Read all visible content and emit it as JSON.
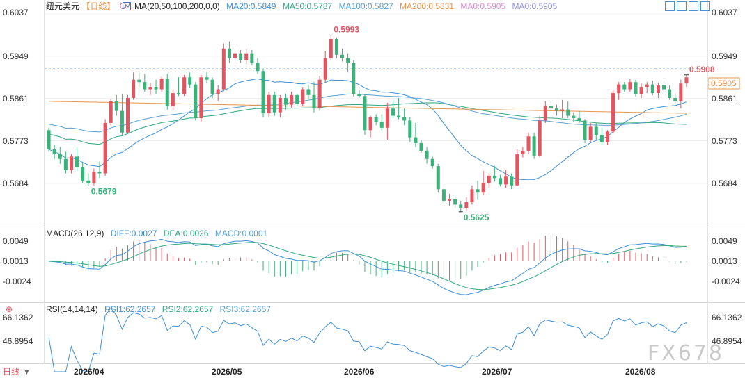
{
  "header": {
    "symbol": "纽元美元",
    "period": "【日线】",
    "ma_label": "MA(20,50,100,200,0,0)",
    "ma_items": [
      {
        "text": "MA20:0.5849",
        "color": "#3d8fd6"
      },
      {
        "text": "MA50:0.5787",
        "color": "#2fa87e"
      },
      {
        "text": "MA100:0.5827",
        "color": "#5aa0d0"
      },
      {
        "text": "MA200:0.5831",
        "color": "#e8954a"
      },
      {
        "text": "MA0:0.5905",
        "color": "#d88ad0"
      },
      {
        "text": "MA0:0.5905",
        "color": "#8f8fe0"
      }
    ]
  },
  "price_axis": {
    "ticks": [
      "0.6037",
      "0.5949",
      "0.5861",
      "0.5773",
      "0.5684"
    ],
    "current": "0.5905"
  },
  "annotations": {
    "high1": "0.5993",
    "low1": "0.5679",
    "low2": "0.5625",
    "high2": "0.5908"
  },
  "macd": {
    "label": "MACD(26,12,9)",
    "diff": "DIFF:0.0027",
    "dea": "DEA:0.0026",
    "macd": "MACD:0.0001",
    "ticks": [
      "0.0049",
      "0.0013",
      "-0.0024"
    ]
  },
  "rsi": {
    "label": "RSI(14,14,14)",
    "rsi1": "RSI1:62.2657",
    "rsi2": "RSI2:62.2657",
    "rsi3": "RSI3:62.2657",
    "ticks": [
      "66.1362",
      "46.8954"
    ]
  },
  "x_axis": {
    "labels": [
      "2026/04",
      "2026/05",
      "2026/06",
      "2026/07",
      "2026/08"
    ]
  },
  "footer": {
    "period_button": "日线"
  },
  "watermark": "FX678",
  "chart_data": {
    "type": "candlestick",
    "title": "纽元美元",
    "ylim": [
      0.562,
      0.6037
    ],
    "colors": {
      "up": "#e35561",
      "down": "#3ab27a"
    },
    "candles": [
      {
        "o": 0.5795,
        "h": 0.58,
        "l": 0.575,
        "c": 0.5755
      },
      {
        "o": 0.5755,
        "h": 0.5765,
        "l": 0.5735,
        "c": 0.5745
      },
      {
        "o": 0.5745,
        "h": 0.576,
        "l": 0.5725,
        "c": 0.5735
      },
      {
        "o": 0.5735,
        "h": 0.575,
        "l": 0.5705,
        "c": 0.5712
      },
      {
        "o": 0.5712,
        "h": 0.5745,
        "l": 0.5705,
        "c": 0.574
      },
      {
        "o": 0.574,
        "h": 0.576,
        "l": 0.571,
        "c": 0.5718
      },
      {
        "o": 0.5718,
        "h": 0.5728,
        "l": 0.5684,
        "c": 0.569
      },
      {
        "o": 0.569,
        "h": 0.5705,
        "l": 0.5679,
        "c": 0.5684
      },
      {
        "o": 0.5684,
        "h": 0.5715,
        "l": 0.568,
        "c": 0.5708
      },
      {
        "o": 0.5708,
        "h": 0.573,
        "l": 0.5695,
        "c": 0.5705
      },
      {
        "o": 0.5705,
        "h": 0.5818,
        "l": 0.57,
        "c": 0.581
      },
      {
        "o": 0.581,
        "h": 0.586,
        "l": 0.5805,
        "c": 0.5855
      },
      {
        "o": 0.5855,
        "h": 0.5868,
        "l": 0.5825,
        "c": 0.5835
      },
      {
        "o": 0.5835,
        "h": 0.587,
        "l": 0.5785,
        "c": 0.579
      },
      {
        "o": 0.579,
        "h": 0.5868,
        "l": 0.5788,
        "c": 0.5862
      },
      {
        "o": 0.5862,
        "h": 0.5915,
        "l": 0.5858,
        "c": 0.59
      },
      {
        "o": 0.59,
        "h": 0.5915,
        "l": 0.5885,
        "c": 0.5895
      },
      {
        "o": 0.5895,
        "h": 0.5912,
        "l": 0.5875,
        "c": 0.588
      },
      {
        "o": 0.588,
        "h": 0.5893,
        "l": 0.5868,
        "c": 0.5885
      },
      {
        "o": 0.5885,
        "h": 0.59,
        "l": 0.587,
        "c": 0.588
      },
      {
        "o": 0.588,
        "h": 0.5906,
        "l": 0.5875,
        "c": 0.5902
      },
      {
        "o": 0.5902,
        "h": 0.5912,
        "l": 0.5838,
        "c": 0.5845
      },
      {
        "o": 0.5845,
        "h": 0.588,
        "l": 0.5838,
        "c": 0.5872
      },
      {
        "o": 0.5872,
        "h": 0.5905,
        "l": 0.5866,
        "c": 0.587
      },
      {
        "o": 0.587,
        "h": 0.591,
        "l": 0.5866,
        "c": 0.5905
      },
      {
        "o": 0.5905,
        "h": 0.5915,
        "l": 0.5883,
        "c": 0.589
      },
      {
        "o": 0.589,
        "h": 0.5895,
        "l": 0.5815,
        "c": 0.582
      },
      {
        "o": 0.582,
        "h": 0.591,
        "l": 0.5812,
        "c": 0.5905
      },
      {
        "o": 0.5905,
        "h": 0.5915,
        "l": 0.5892,
        "c": 0.59
      },
      {
        "o": 0.59,
        "h": 0.5905,
        "l": 0.5862,
        "c": 0.587
      },
      {
        "o": 0.587,
        "h": 0.5888,
        "l": 0.5856,
        "c": 0.588
      },
      {
        "o": 0.588,
        "h": 0.5975,
        "l": 0.5876,
        "c": 0.5965
      },
      {
        "o": 0.5965,
        "h": 0.598,
        "l": 0.5935,
        "c": 0.5945
      },
      {
        "o": 0.5945,
        "h": 0.5965,
        "l": 0.5928,
        "c": 0.5955
      },
      {
        "o": 0.5955,
        "h": 0.5962,
        "l": 0.5935,
        "c": 0.594
      },
      {
        "o": 0.594,
        "h": 0.5965,
        "l": 0.5932,
        "c": 0.5955
      },
      {
        "o": 0.5955,
        "h": 0.5962,
        "l": 0.593,
        "c": 0.5935
      },
      {
        "o": 0.5935,
        "h": 0.5945,
        "l": 0.5912,
        "c": 0.5918
      },
      {
        "o": 0.5918,
        "h": 0.5922,
        "l": 0.5822,
        "c": 0.583
      },
      {
        "o": 0.583,
        "h": 0.5875,
        "l": 0.5822,
        "c": 0.5868
      },
      {
        "o": 0.5868,
        "h": 0.5875,
        "l": 0.5825,
        "c": 0.5832
      },
      {
        "o": 0.5832,
        "h": 0.5868,
        "l": 0.5822,
        "c": 0.5862
      },
      {
        "o": 0.5862,
        "h": 0.587,
        "l": 0.5838,
        "c": 0.5848
      },
      {
        "o": 0.5848,
        "h": 0.5875,
        "l": 0.5842,
        "c": 0.5868
      },
      {
        "o": 0.5868,
        "h": 0.587,
        "l": 0.5845,
        "c": 0.585
      },
      {
        "o": 0.585,
        "h": 0.5885,
        "l": 0.5845,
        "c": 0.588
      },
      {
        "o": 0.588,
        "h": 0.589,
        "l": 0.586,
        "c": 0.5868
      },
      {
        "o": 0.5868,
        "h": 0.5895,
        "l": 0.5832,
        "c": 0.584
      },
      {
        "o": 0.584,
        "h": 0.5908,
        "l": 0.5835,
        "c": 0.59
      },
      {
        "o": 0.59,
        "h": 0.596,
        "l": 0.5894,
        "c": 0.5945
      },
      {
        "o": 0.5945,
        "h": 0.5993,
        "l": 0.594,
        "c": 0.5985
      },
      {
        "o": 0.5985,
        "h": 0.5988,
        "l": 0.5945,
        "c": 0.5952
      },
      {
        "o": 0.5952,
        "h": 0.5965,
        "l": 0.5938,
        "c": 0.5945
      },
      {
        "o": 0.5945,
        "h": 0.5955,
        "l": 0.5915,
        "c": 0.5935
      },
      {
        "o": 0.5935,
        "h": 0.594,
        "l": 0.5865,
        "c": 0.587
      },
      {
        "o": 0.587,
        "h": 0.5878,
        "l": 0.5862,
        "c": 0.5866
      },
      {
        "o": 0.5866,
        "h": 0.587,
        "l": 0.5785,
        "c": 0.5795
      },
      {
        "o": 0.5795,
        "h": 0.5825,
        "l": 0.578,
        "c": 0.5822
      },
      {
        "o": 0.5822,
        "h": 0.5828,
        "l": 0.5805,
        "c": 0.5812
      },
      {
        "o": 0.5812,
        "h": 0.5828,
        "l": 0.5795,
        "c": 0.58
      },
      {
        "o": 0.58,
        "h": 0.5852,
        "l": 0.5775,
        "c": 0.584
      },
      {
        "o": 0.584,
        "h": 0.5858,
        "l": 0.582,
        "c": 0.5825
      },
      {
        "o": 0.5825,
        "h": 0.5862,
        "l": 0.5818,
        "c": 0.5822
      },
      {
        "o": 0.5822,
        "h": 0.584,
        "l": 0.5805,
        "c": 0.5815
      },
      {
        "o": 0.5815,
        "h": 0.5822,
        "l": 0.577,
        "c": 0.578
      },
      {
        "o": 0.578,
        "h": 0.581,
        "l": 0.576,
        "c": 0.5768
      },
      {
        "o": 0.5768,
        "h": 0.5775,
        "l": 0.5748,
        "c": 0.5752
      },
      {
        "o": 0.5752,
        "h": 0.576,
        "l": 0.5725,
        "c": 0.5735
      },
      {
        "o": 0.5735,
        "h": 0.574,
        "l": 0.5715,
        "c": 0.572
      },
      {
        "o": 0.572,
        "h": 0.5725,
        "l": 0.5665,
        "c": 0.5672
      },
      {
        "o": 0.5672,
        "h": 0.5678,
        "l": 0.564,
        "c": 0.5648
      },
      {
        "o": 0.5648,
        "h": 0.5662,
        "l": 0.5638,
        "c": 0.5652
      },
      {
        "o": 0.5652,
        "h": 0.5658,
        "l": 0.5635,
        "c": 0.564
      },
      {
        "o": 0.564,
        "h": 0.5648,
        "l": 0.5625,
        "c": 0.5632
      },
      {
        "o": 0.5632,
        "h": 0.5655,
        "l": 0.5628,
        "c": 0.5645
      },
      {
        "o": 0.5645,
        "h": 0.568,
        "l": 0.564,
        "c": 0.5672
      },
      {
        "o": 0.5672,
        "h": 0.569,
        "l": 0.565,
        "c": 0.5665
      },
      {
        "o": 0.5665,
        "h": 0.571,
        "l": 0.566,
        "c": 0.5685
      },
      {
        "o": 0.5685,
        "h": 0.5705,
        "l": 0.5675,
        "c": 0.57
      },
      {
        "o": 0.57,
        "h": 0.572,
        "l": 0.5688,
        "c": 0.5695
      },
      {
        "o": 0.5695,
        "h": 0.5702,
        "l": 0.5678,
        "c": 0.5682
      },
      {
        "o": 0.5682,
        "h": 0.5712,
        "l": 0.5675,
        "c": 0.5698
      },
      {
        "o": 0.5698,
        "h": 0.5705,
        "l": 0.5672,
        "c": 0.568
      },
      {
        "o": 0.568,
        "h": 0.5755,
        "l": 0.5678,
        "c": 0.5745
      },
      {
        "o": 0.5745,
        "h": 0.576,
        "l": 0.5738,
        "c": 0.5752
      },
      {
        "o": 0.5752,
        "h": 0.579,
        "l": 0.5745,
        "c": 0.5782
      },
      {
        "o": 0.5782,
        "h": 0.579,
        "l": 0.5735,
        "c": 0.5742
      },
      {
        "o": 0.5742,
        "h": 0.5825,
        "l": 0.5738,
        "c": 0.5815
      },
      {
        "o": 0.5815,
        "h": 0.5855,
        "l": 0.581,
        "c": 0.5845
      },
      {
        "o": 0.5845,
        "h": 0.5855,
        "l": 0.583,
        "c": 0.584
      },
      {
        "o": 0.584,
        "h": 0.5848,
        "l": 0.5825,
        "c": 0.5835
      },
      {
        "o": 0.5835,
        "h": 0.5858,
        "l": 0.582,
        "c": 0.5838
      },
      {
        "o": 0.5838,
        "h": 0.5855,
        "l": 0.582,
        "c": 0.5825
      },
      {
        "o": 0.5825,
        "h": 0.5832,
        "l": 0.5812,
        "c": 0.582
      },
      {
        "o": 0.582,
        "h": 0.5835,
        "l": 0.581,
        "c": 0.5815
      },
      {
        "o": 0.5815,
        "h": 0.5818,
        "l": 0.5768,
        "c": 0.5775
      },
      {
        "o": 0.5775,
        "h": 0.581,
        "l": 0.577,
        "c": 0.5802
      },
      {
        "o": 0.5802,
        "h": 0.581,
        "l": 0.5775,
        "c": 0.5785
      },
      {
        "o": 0.5785,
        "h": 0.58,
        "l": 0.5765,
        "c": 0.577
      },
      {
        "o": 0.577,
        "h": 0.5795,
        "l": 0.5765,
        "c": 0.5792
      },
      {
        "o": 0.5792,
        "h": 0.5878,
        "l": 0.5788,
        "c": 0.5872
      },
      {
        "o": 0.5872,
        "h": 0.5895,
        "l": 0.5858,
        "c": 0.589
      },
      {
        "o": 0.589,
        "h": 0.5895,
        "l": 0.5875,
        "c": 0.588
      },
      {
        "o": 0.588,
        "h": 0.5902,
        "l": 0.5875,
        "c": 0.5895
      },
      {
        "o": 0.5895,
        "h": 0.59,
        "l": 0.5865,
        "c": 0.587
      },
      {
        "o": 0.587,
        "h": 0.5892,
        "l": 0.5862,
        "c": 0.5885
      },
      {
        "o": 0.5885,
        "h": 0.5895,
        "l": 0.5872,
        "c": 0.589
      },
      {
        "o": 0.589,
        "h": 0.5898,
        "l": 0.5868,
        "c": 0.5872
      },
      {
        "o": 0.5872,
        "h": 0.5893,
        "l": 0.5862,
        "c": 0.5888
      },
      {
        "o": 0.5888,
        "h": 0.5895,
        "l": 0.5875,
        "c": 0.588
      },
      {
        "o": 0.588,
        "h": 0.5888,
        "l": 0.5858,
        "c": 0.5862
      },
      {
        "o": 0.5862,
        "h": 0.587,
        "l": 0.5848,
        "c": 0.5855
      },
      {
        "o": 0.5855,
        "h": 0.59,
        "l": 0.584,
        "c": 0.5892
      },
      {
        "o": 0.5892,
        "h": 0.591,
        "l": 0.5885,
        "c": 0.5905
      }
    ]
  }
}
